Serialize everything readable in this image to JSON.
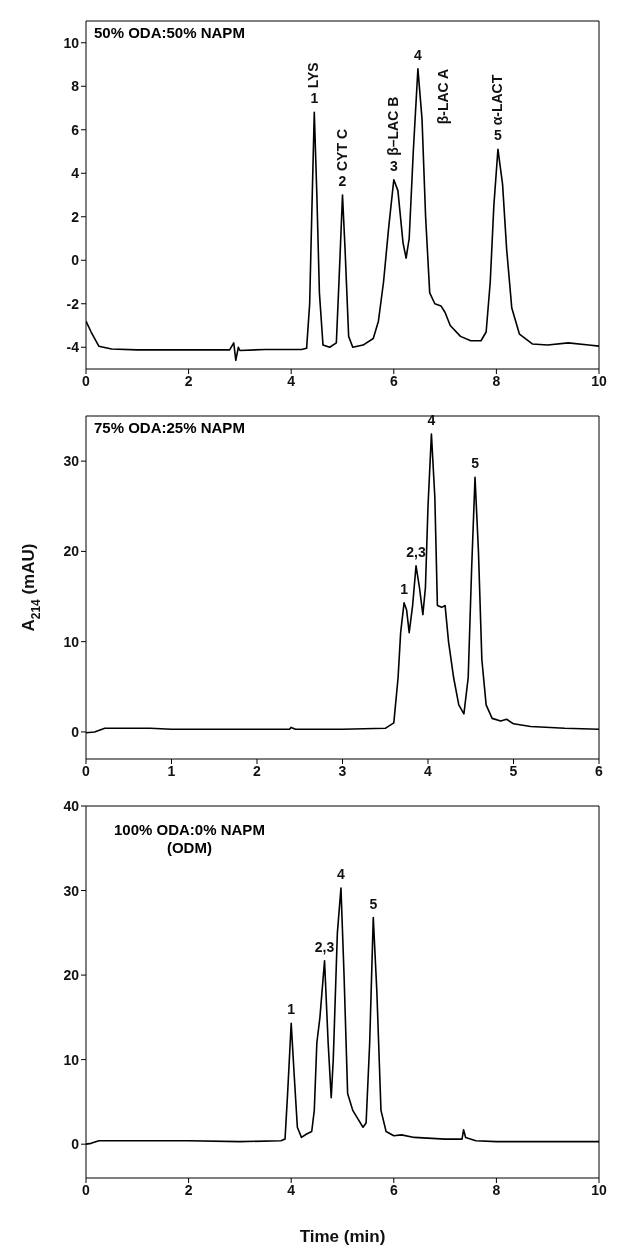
{
  "chart_data": [
    {
      "type": "line",
      "title": "50% ODA:50% NAPM",
      "color": "#000000",
      "marker": "none",
      "line_style": "solid",
      "grid": false,
      "legend": false,
      "xlim": [
        0,
        10
      ],
      "xticks": [
        0,
        2,
        4,
        6,
        8,
        10
      ],
      "ylim": [
        -5,
        11
      ],
      "yticks": [
        -4,
        -2,
        0,
        2,
        4,
        6,
        8,
        10
      ],
      "x": [
        0,
        0.1,
        0.25,
        0.5,
        1,
        2,
        2.8,
        2.88,
        2.92,
        2.97,
        3.0,
        3.5,
        4.2,
        4.3,
        4.36,
        4.4,
        4.45,
        4.5,
        4.55,
        4.62,
        4.75,
        4.88,
        4.94,
        5.0,
        5.05,
        5.12,
        5.2,
        5.4,
        5.6,
        5.7,
        5.8,
        5.9,
        6.0,
        6.08,
        6.18,
        6.24,
        6.3,
        6.38,
        6.47,
        6.55,
        6.62,
        6.7,
        6.8,
        6.92,
        7.0,
        7.1,
        7.3,
        7.5,
        7.7,
        7.8,
        7.88,
        7.95,
        8.03,
        8.12,
        8.2,
        8.3,
        8.45,
        8.7,
        9.0,
        9.4,
        9.8,
        10
      ],
      "values": [
        -2.8,
        -3.3,
        -3.95,
        -4.08,
        -4.12,
        -4.12,
        -4.12,
        -3.8,
        -4.6,
        -4.0,
        -4.15,
        -4.1,
        -4.1,
        -4.05,
        -2,
        2,
        6.8,
        3,
        -1.5,
        -3.9,
        -4.0,
        -3.8,
        -0.5,
        3.0,
        0.5,
        -3.5,
        -4.0,
        -3.9,
        -3.6,
        -2.8,
        -1,
        1.5,
        3.7,
        3.2,
        0.8,
        0.1,
        1.0,
        5,
        8.8,
        6.5,
        2,
        -1.5,
        -2.0,
        -2.1,
        -2.4,
        -3.0,
        -3.5,
        -3.7,
        -3.7,
        -3.3,
        -1,
        2.5,
        5.1,
        3.5,
        0.5,
        -2.2,
        -3.4,
        -3.85,
        -3.9,
        -3.8,
        -3.9,
        -3.95
      ],
      "annotations": [
        {
          "text": "LYS",
          "x": 4.45,
          "y": 6.8
        },
        {
          "text": "1",
          "x": 4.45,
          "y": 6.8
        },
        {
          "text": "CYT C",
          "x": 5.0,
          "y": 3.0
        },
        {
          "text": "2",
          "x": 5.0,
          "y": 3.0
        },
        {
          "text": "β–LAC B",
          "x": 6.0,
          "y": 3.7
        },
        {
          "text": "3",
          "x": 6.0,
          "y": 3.7
        },
        {
          "text": "4",
          "x": 6.47,
          "y": 8.8
        },
        {
          "text": "β-LAC A",
          "x": 6.47,
          "y": 8.8
        },
        {
          "text": "α-LACT",
          "x": 8.03,
          "y": 5.1
        },
        {
          "text": "5",
          "x": 8.03,
          "y": 5.1
        }
      ]
    },
    {
      "type": "line",
      "title": "75% ODA:25% NAPM",
      "ylabel": "A$_{214}$ (mAU)",
      "color": "#000000",
      "marker": "none",
      "line_style": "solid",
      "grid": false,
      "legend": false,
      "xlim": [
        0,
        6
      ],
      "xticks": [
        0,
        1,
        2,
        3,
        4,
        5,
        6
      ],
      "ylim": [
        -3,
        35
      ],
      "yticks": [
        0,
        10,
        20,
        30
      ],
      "x": [
        0,
        0.1,
        0.22,
        0.5,
        0.75,
        1,
        2,
        2.38,
        2.4,
        2.45,
        3,
        3.5,
        3.6,
        3.65,
        3.68,
        3.72,
        3.75,
        3.78,
        3.82,
        3.86,
        3.9,
        3.94,
        3.97,
        4.0,
        4.04,
        4.08,
        4.11,
        4.16,
        4.2,
        4.24,
        4.3,
        4.36,
        4.42,
        4.47,
        4.51,
        4.55,
        4.59,
        4.63,
        4.68,
        4.75,
        4.85,
        4.92,
        5.0,
        5.2,
        5.6,
        6
      ],
      "values": [
        -0.1,
        0,
        0.4,
        0.4,
        0.4,
        0.3,
        0.3,
        0.3,
        0.5,
        0.3,
        0.3,
        0.4,
        1,
        6,
        11,
        14.3,
        13.5,
        11,
        14,
        18.4,
        16,
        13,
        16,
        25,
        33,
        26,
        14,
        13.8,
        14,
        10,
        6,
        3,
        2,
        6,
        18,
        28.2,
        20,
        8,
        3,
        1.5,
        1.2,
        1.4,
        0.9,
        0.6,
        0.4,
        0.3
      ],
      "annotations": [
        {
          "text": "1",
          "x": 3.72,
          "y": 14.3
        },
        {
          "text": "2,3",
          "x": 3.86,
          "y": 18.4
        },
        {
          "text": "4",
          "x": 4.04,
          "y": 33
        },
        {
          "text": "5",
          "x": 4.55,
          "y": 28.2
        }
      ]
    },
    {
      "type": "line",
      "title": "100% ODA:0% NAPM",
      "subtitle": "(ODM)",
      "xlabel": "Time (min)",
      "color": "#000000",
      "marker": "none",
      "line_style": "solid",
      "grid": false,
      "legend": false,
      "xlim": [
        0,
        10
      ],
      "xticks": [
        0,
        2,
        4,
        6,
        8,
        10
      ],
      "ylim": [
        -4,
        40
      ],
      "yticks": [
        0,
        10,
        20,
        30,
        40
      ],
      "x": [
        0,
        0.1,
        0.25,
        1,
        2,
        3,
        3.8,
        3.88,
        3.93,
        4.0,
        4.06,
        4.12,
        4.2,
        4.3,
        4.4,
        4.45,
        4.5,
        4.56,
        4.65,
        4.72,
        4.78,
        4.82,
        4.9,
        4.97,
        5.03,
        5.1,
        5.2,
        5.3,
        5.4,
        5.46,
        5.53,
        5.6,
        5.67,
        5.75,
        5.85,
        6.0,
        6.15,
        6.4,
        7,
        7.33,
        7.36,
        7.4,
        7.6,
        8,
        9,
        10
      ],
      "values": [
        0,
        0.1,
        0.4,
        0.4,
        0.4,
        0.3,
        0.4,
        0.6,
        6,
        14.3,
        8,
        2,
        0.8,
        1.2,
        1.5,
        4,
        12,
        15,
        21.7,
        12,
        5.5,
        10,
        25,
        30.3,
        20,
        6,
        4,
        3,
        2,
        2.5,
        12,
        26.8,
        18,
        4,
        1.5,
        1,
        1.1,
        0.8,
        0.6,
        0.6,
        1.7,
        0.8,
        0.4,
        0.3,
        0.3,
        0.3
      ],
      "annotations": [
        {
          "text": "1",
          "x": 4.0,
          "y": 14.3
        },
        {
          "text": "2,3",
          "x": 4.65,
          "y": 21.7
        },
        {
          "text": "4",
          "x": 4.97,
          "y": 30.3
        },
        {
          "text": "5",
          "x": 5.6,
          "y": 26.8
        }
      ]
    }
  ]
}
